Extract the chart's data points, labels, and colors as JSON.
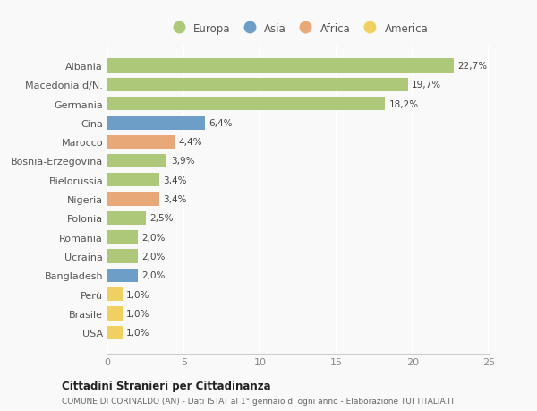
{
  "countries": [
    "Albania",
    "Macedonia d/N.",
    "Germania",
    "Cina",
    "Marocco",
    "Bosnia-Erzegovina",
    "Bielorussia",
    "Nigeria",
    "Polonia",
    "Romania",
    "Ucraina",
    "Bangladesh",
    "Perù",
    "Brasile",
    "USA"
  ],
  "values": [
    22.7,
    19.7,
    18.2,
    6.4,
    4.4,
    3.9,
    3.4,
    3.4,
    2.5,
    2.0,
    2.0,
    2.0,
    1.0,
    1.0,
    1.0
  ],
  "labels": [
    "22,7%",
    "19,7%",
    "18,2%",
    "6,4%",
    "4,4%",
    "3,9%",
    "3,4%",
    "3,4%",
    "2,5%",
    "2,0%",
    "2,0%",
    "2,0%",
    "1,0%",
    "1,0%",
    "1,0%"
  ],
  "continents": [
    "Europa",
    "Europa",
    "Europa",
    "Asia",
    "Africa",
    "Europa",
    "Europa",
    "Africa",
    "Europa",
    "Europa",
    "Europa",
    "Asia",
    "America",
    "America",
    "America"
  ],
  "continent_colors": {
    "Europa": "#adc878",
    "Asia": "#6c9ec8",
    "Africa": "#e8a878",
    "America": "#f0d060"
  },
  "legend_order": [
    "Europa",
    "Asia",
    "Africa",
    "America"
  ],
  "title": "Cittadini Stranieri per Cittadinanza",
  "subtitle": "COMUNE DI CORINALDO (AN) - Dati ISTAT al 1° gennaio di ogni anno - Elaborazione TUTTITALIA.IT",
  "xlim": [
    0,
    25
  ],
  "xticks": [
    0,
    5,
    10,
    15,
    20,
    25
  ],
  "background_color": "#f9f9f9",
  "grid_color": "#e8e8e8",
  "bar_height": 0.72
}
